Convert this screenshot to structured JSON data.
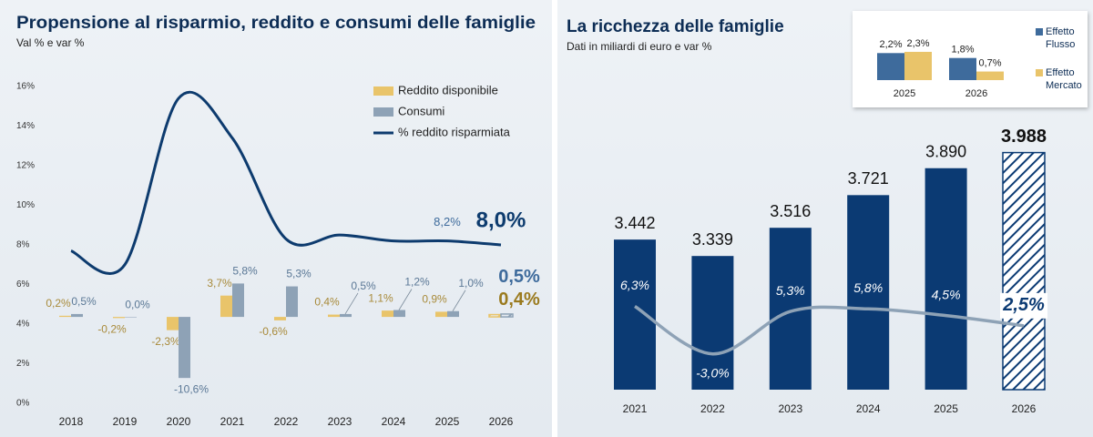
{
  "chart_data": [
    {
      "type": "combo",
      "title": "Propensione al risparmio, reddito e consumi delle famiglie",
      "subtitle": "Val % e var %",
      "categories": [
        "2018",
        "2019",
        "2020",
        "2021",
        "2022",
        "2023",
        "2024",
        "2025",
        "2026"
      ],
      "ylim": [
        0,
        16
      ],
      "yticks": [
        {
          "value": 0,
          "label": "0%"
        },
        {
          "value": 2,
          "label": "2%"
        },
        {
          "value": 4,
          "label": "4%"
        },
        {
          "value": 6,
          "label": "6%"
        },
        {
          "value": 8,
          "label": "8%"
        },
        {
          "value": 10,
          "label": "10%"
        },
        {
          "value": 12,
          "label": "12%"
        },
        {
          "value": 14,
          "label": "14%"
        },
        {
          "value": 16,
          "label": "16%"
        }
      ],
      "y2lim": [
        -15,
        40
      ],
      "grid": false,
      "legend": "upper right",
      "series": [
        {
          "name": "Reddito disponibile",
          "type": "bar",
          "axis": "y2",
          "color": "#e9c46a",
          "values": [
            0.2,
            -0.2,
            -2.3,
            3.7,
            -0.6,
            0.4,
            1.1,
            0.9,
            0.4
          ],
          "value_labels": [
            "0,2%",
            "-0,2%",
            "-2,3%",
            "3,7%",
            "-0,6%",
            "0,4%",
            "1,1%",
            "0,9%",
            "0,4%"
          ]
        },
        {
          "name": "Consumi",
          "type": "bar",
          "axis": "y2",
          "color": "#8ea2b6",
          "values": [
            0.5,
            0.0,
            -10.6,
            5.8,
            5.3,
            0.5,
            1.2,
            1.0,
            0.5
          ],
          "value_labels": [
            "0,5%",
            "0,0%",
            "-10,6%",
            "5,8%",
            "5,3%",
            "0,5%",
            "1,2%",
            "1,0%",
            "0,5%"
          ]
        },
        {
          "name": "% reddito risparmiata",
          "type": "line",
          "color": "#0d3b6e",
          "values": [
            7.7,
            7.0,
            15.4,
            13.4,
            8.3,
            8.5,
            8.2,
            8.2,
            8.0
          ],
          "value_labels": [
            null,
            null,
            null,
            null,
            null,
            null,
            null,
            "8,2%",
            "8,0%"
          ]
        }
      ]
    },
    {
      "type": "combo",
      "title": "La ricchezza delle famiglie",
      "subtitle": "Dati in miliardi di euro e var %",
      "categories": [
        "2021",
        "2022",
        "2023",
        "2024",
        "2025",
        "2026"
      ],
      "ylim": [
        2500,
        4200
      ],
      "y2lim": [
        -10,
        43
      ],
      "series": [
        {
          "type": "bar",
          "color": "#0b3a73",
          "values": [
            3442,
            3339,
            3516,
            3721,
            3890,
            3988
          ],
          "value_labels": [
            "3.442",
            "3.339",
            "3.516",
            "3.721",
            "3.890",
            "3.988"
          ]
        },
        {
          "type": "line",
          "axis": "y2",
          "color": "#8ea2b6",
          "values": [
            6.3,
            -3.0,
            5.3,
            5.8,
            4.5,
            2.5
          ],
          "value_labels": [
            "6,3%",
            "-3,0%",
            "5,3%",
            "5,8%",
            "4,5%",
            "2,5%"
          ]
        }
      ]
    },
    {
      "type": "bar",
      "categories": [
        "2025",
        "2026"
      ],
      "ylim": [
        0,
        3
      ],
      "legend": "right",
      "series": [
        {
          "name": "Effetto Flusso",
          "color": "#3e6b9c",
          "values": [
            2.2,
            1.8
          ],
          "value_labels": [
            "2,2%",
            "1,8%"
          ]
        },
        {
          "name": "Effetto Mercato",
          "color": "#e9c46a",
          "values": [
            2.3,
            0.7
          ],
          "value_labels": [
            "2,3%",
            "0,7%"
          ]
        }
      ]
    }
  ]
}
